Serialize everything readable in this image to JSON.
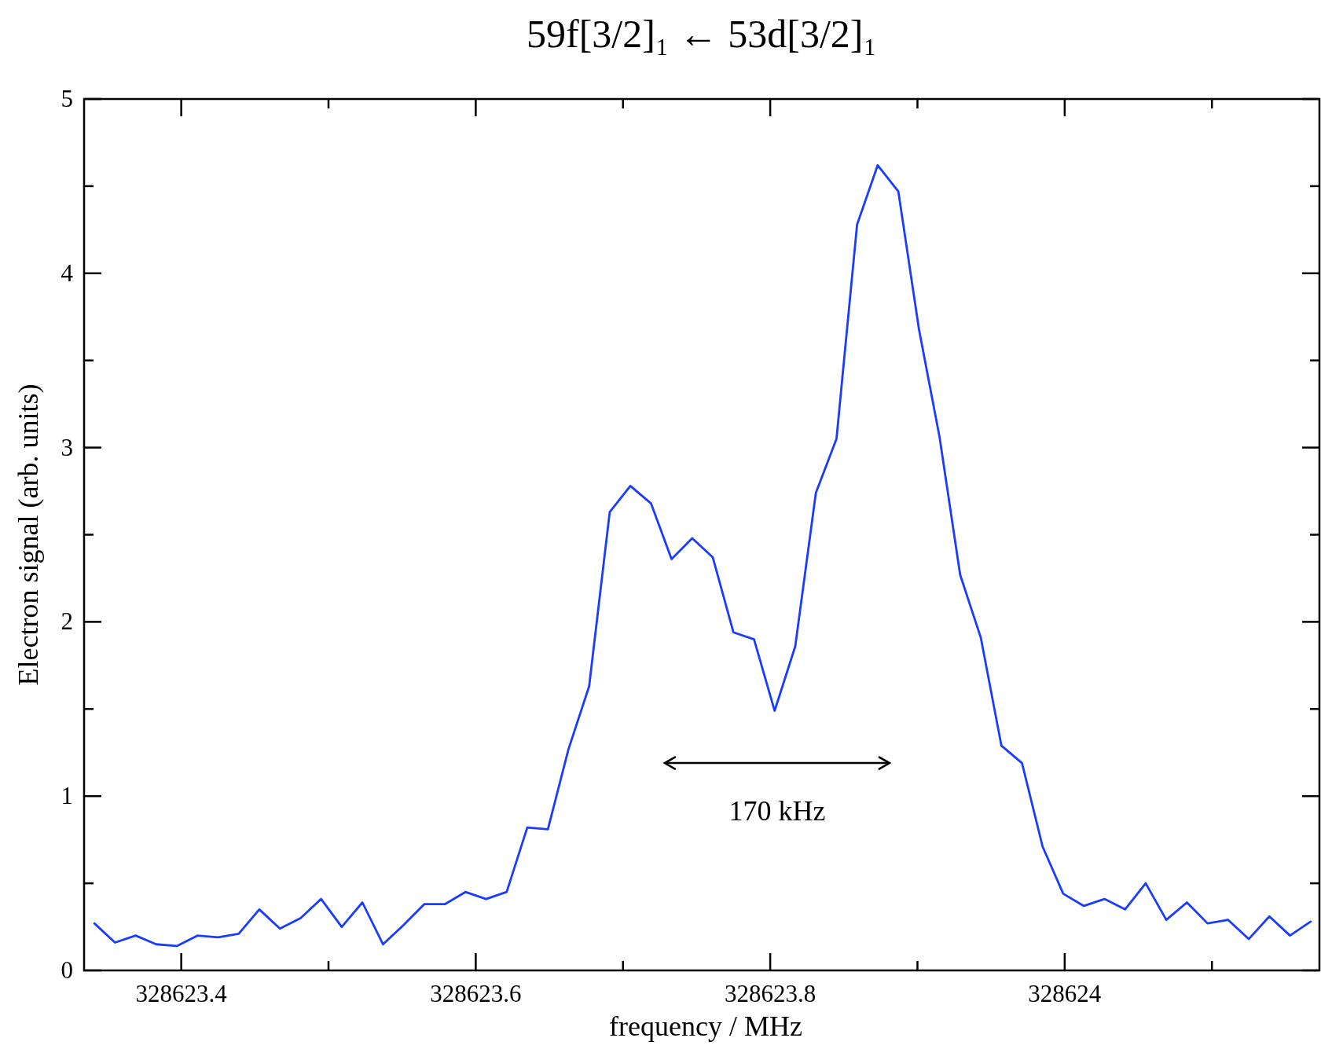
{
  "chart_data": {
    "type": "line",
    "title": "59f[3/2]₁ ← 53d[3/2]₁",
    "xlabel": "frequency / MHz",
    "ylabel": "Electron signal (arb. units)",
    "annotations": [
      "170 kHz"
    ],
    "x": [
      328623.341,
      328623.355,
      328623.369,
      328623.383,
      328623.397,
      328623.411,
      328623.425,
      328623.439,
      328623.453,
      328623.467,
      328623.481,
      328623.495,
      328623.509,
      328623.523,
      328623.537,
      328623.551,
      328623.565,
      328623.579,
      328623.593,
      328623.607,
      328623.621,
      328623.635,
      328623.649,
      328623.663,
      328623.677,
      328623.691,
      328623.705,
      328623.719,
      328623.733,
      328623.747,
      328623.761,
      328623.775,
      328623.789,
      328623.803,
      328623.817,
      328623.831,
      328623.845,
      328623.859,
      328623.873,
      328623.887,
      328623.901,
      328623.915,
      328623.929,
      328623.943,
      328623.957,
      328623.971,
      328623.985,
      328623.999,
      328624.013,
      328624.027,
      328624.041,
      328624.055,
      328624.069,
      328624.083,
      328624.097,
      328624.111,
      328624.125,
      328624.139,
      328624.153,
      328624.167
    ],
    "series": [
      {
        "color": "#1a3cff",
        "values": [
          0.27,
          0.16,
          0.2,
          0.15,
          0.14,
          0.2,
          0.19,
          0.21,
          0.35,
          0.24,
          0.3,
          0.41,
          0.25,
          0.39,
          0.15,
          0.26,
          0.38,
          0.38,
          0.45,
          0.41,
          0.45,
          0.82,
          0.81,
          1.27,
          1.63,
          2.63,
          2.78,
          2.68,
          2.36,
          2.48,
          2.37,
          1.94,
          1.9,
          1.49,
          1.86,
          2.74,
          3.05,
          4.28,
          4.62,
          4.47,
          3.68,
          3.06,
          2.27,
          1.91,
          1.29,
          1.19,
          0.71,
          0.44,
          0.37,
          0.41,
          0.35,
          0.5,
          0.29,
          0.39,
          0.27,
          0.29,
          0.18,
          0.31,
          0.2,
          0.28
        ]
      }
    ],
    "xlim": [
      328623.334,
      328624.173
    ],
    "ylim": [
      0,
      5
    ],
    "xticks": [
      {
        "value": 328623.4,
        "label": "328623.4"
      },
      {
        "value": 328623.5,
        "label": null
      },
      {
        "value": 328623.6,
        "label": "328623.6"
      },
      {
        "value": 328623.7,
        "label": null
      },
      {
        "value": 328623.8,
        "label": "328623.8"
      },
      {
        "value": 328623.9,
        "label": null
      },
      {
        "value": 328624,
        "label": "328624"
      },
      {
        "value": 328624.1,
        "label": null
      }
    ],
    "yticks": [
      0,
      {
        "value": 0.5,
        "label": null
      },
      1,
      {
        "value": 1.5,
        "label": null
      },
      2,
      {
        "value": 2.5,
        "label": null
      },
      3,
      {
        "value": 3.5,
        "label": null
      },
      4,
      {
        "value": 4.5,
        "label": null
      },
      5
    ],
    "grid": false,
    "marker": "none",
    "line_style": "solid"
  }
}
